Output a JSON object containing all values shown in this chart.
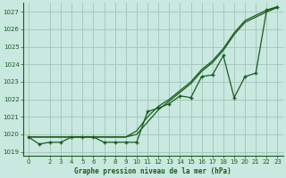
{
  "title": "Graphe pression niveau de la mer (hPa)",
  "background_color": "#c8e8e0",
  "grid_color": "#a8c8c0",
  "line_color": "#1a5c1a",
  "x_hours": [
    0,
    1,
    2,
    3,
    4,
    5,
    6,
    7,
    8,
    9,
    10,
    11,
    12,
    13,
    14,
    15,
    16,
    17,
    18,
    19,
    20,
    21,
    22,
    23
  ],
  "smooth1": [
    1019.85,
    1019.85,
    1019.85,
    1019.85,
    1019.85,
    1019.85,
    1019.85,
    1019.85,
    1019.85,
    1019.85,
    1020.2,
    1021.0,
    1021.6,
    1022.0,
    1022.5,
    1023.0,
    1023.7,
    1024.2,
    1024.9,
    1025.8,
    1026.5,
    1026.8,
    1027.1,
    1027.3
  ],
  "smooth2": [
    1019.85,
    1019.85,
    1019.85,
    1019.85,
    1019.85,
    1019.85,
    1019.85,
    1019.85,
    1019.85,
    1019.85,
    1020.0,
    1020.7,
    1021.4,
    1021.9,
    1022.4,
    1022.9,
    1023.6,
    1024.1,
    1024.8,
    1025.7,
    1026.4,
    1026.7,
    1027.0,
    1027.25
  ],
  "marker_line": [
    1019.85,
    1019.45,
    1019.55,
    1019.55,
    1019.85,
    1019.85,
    1019.85,
    1019.55,
    1019.55,
    1019.55,
    1019.55,
    1021.3,
    1021.5,
    1021.75,
    1022.2,
    1022.1,
    1023.3,
    1023.4,
    1024.5,
    1022.1,
    1023.3,
    1023.5,
    1027.1,
    1027.25
  ],
  "ylim": [
    1018.8,
    1027.5
  ],
  "yticks": [
    1019,
    1020,
    1021,
    1022,
    1023,
    1024,
    1025,
    1026,
    1027
  ],
  "xlim": [
    -0.5,
    23.5
  ],
  "xticks": [
    0,
    2,
    3,
    4,
    5,
    6,
    7,
    8,
    9,
    10,
    11,
    12,
    13,
    14,
    15,
    16,
    17,
    18,
    19,
    20,
    21,
    22,
    23
  ]
}
